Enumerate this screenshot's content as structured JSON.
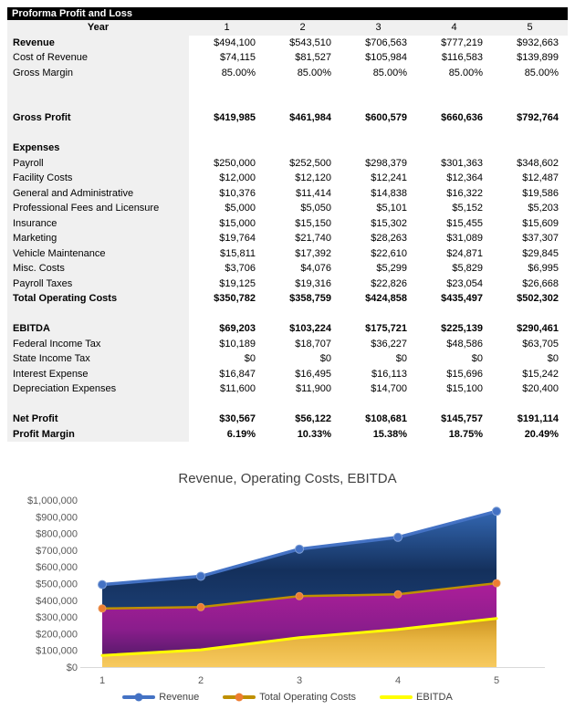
{
  "report": {
    "title": "Proforma Profit and Loss",
    "year_label": "Year",
    "years": [
      "1",
      "2",
      "3",
      "4",
      "5"
    ],
    "rows": [
      {
        "label": "Revenue",
        "bold_label": true,
        "values": [
          "$494,100",
          "$543,510",
          "$706,563",
          "$777,219",
          "$932,663"
        ]
      },
      {
        "label": "Cost of Revenue",
        "values": [
          "$74,115",
          "$81,527",
          "$105,984",
          "$116,583",
          "$139,899"
        ]
      },
      {
        "label": "Gross Margin",
        "values": [
          "85.00%",
          "85.00%",
          "85.00%",
          "85.00%",
          "85.00%"
        ]
      },
      {
        "type": "blank"
      },
      {
        "type": "blank"
      },
      {
        "label": "Gross Profit",
        "bold": true,
        "values": [
          "$419,985",
          "$461,984",
          "$600,579",
          "$660,636",
          "$792,764"
        ]
      },
      {
        "type": "blank"
      },
      {
        "label": "Expenses",
        "bold_label": true
      },
      {
        "label": "Payroll",
        "values": [
          "$250,000",
          "$252,500",
          "$298,379",
          "$301,363",
          "$348,602"
        ]
      },
      {
        "label": "Facility Costs",
        "values": [
          "$12,000",
          "$12,120",
          "$12,241",
          "$12,364",
          "$12,487"
        ]
      },
      {
        "label": "General and Administrative",
        "values": [
          "$10,376",
          "$11,414",
          "$14,838",
          "$16,322",
          "$19,586"
        ]
      },
      {
        "label": "Professional Fees and Licensure",
        "values": [
          "$5,000",
          "$5,050",
          "$5,101",
          "$5,152",
          "$5,203"
        ]
      },
      {
        "label": "Insurance",
        "values": [
          "$15,000",
          "$15,150",
          "$15,302",
          "$15,455",
          "$15,609"
        ]
      },
      {
        "label": "Marketing",
        "values": [
          "$19,764",
          "$21,740",
          "$28,263",
          "$31,089",
          "$37,307"
        ]
      },
      {
        "label": "Vehicle Maintenance",
        "values": [
          "$15,811",
          "$17,392",
          "$22,610",
          "$24,871",
          "$29,845"
        ]
      },
      {
        "label": "Misc. Costs",
        "values": [
          "$3,706",
          "$4,076",
          "$5,299",
          "$5,829",
          "$6,995"
        ]
      },
      {
        "label": "Payroll Taxes",
        "values": [
          "$19,125",
          "$19,316",
          "$22,826",
          "$23,054",
          "$26,668"
        ]
      },
      {
        "label": "Total Operating Costs",
        "bold": true,
        "values": [
          "$350,782",
          "$358,759",
          "$424,858",
          "$435,497",
          "$502,302"
        ]
      },
      {
        "type": "blank"
      },
      {
        "label": "EBITDA",
        "bold": true,
        "values": [
          "$69,203",
          "$103,224",
          "$175,721",
          "$225,139",
          "$290,461"
        ]
      },
      {
        "label": "Federal Income Tax",
        "values": [
          "$10,189",
          "$18,707",
          "$36,227",
          "$48,586",
          "$63,705"
        ]
      },
      {
        "label": "State Income Tax",
        "values": [
          "$0",
          "$0",
          "$0",
          "$0",
          "$0"
        ]
      },
      {
        "label": "Interest Expense",
        "values": [
          "$16,847",
          "$16,495",
          "$16,113",
          "$15,696",
          "$15,242"
        ]
      },
      {
        "label": "Depreciation Expenses",
        "values": [
          "$11,600",
          "$11,900",
          "$14,700",
          "$15,100",
          "$20,400"
        ]
      },
      {
        "type": "blank"
      },
      {
        "label": "Net Profit",
        "bold": true,
        "values": [
          "$30,567",
          "$56,122",
          "$108,681",
          "$145,757",
          "$191,114"
        ]
      },
      {
        "label": "Profit Margin",
        "bold": true,
        "values": [
          "6.19%",
          "10.33%",
          "15.38%",
          "18.75%",
          "20.49%"
        ]
      }
    ],
    "colors": {
      "title_bar_bg": "#000000",
      "title_bar_text": "#FFFFFF",
      "label_column_bg": "#F0F0F0",
      "body_text": "#000000"
    }
  },
  "chart_data": {
    "type": "area",
    "title": "Revenue, Operating Costs, EBITDA",
    "x": [
      1,
      2,
      3,
      4,
      5
    ],
    "series": [
      {
        "name": "Revenue",
        "values": [
          494100,
          543510,
          706563,
          777219,
          932663
        ],
        "line_color": "#4472C4",
        "marker": true,
        "marker_color": "#4472C4",
        "gradient": [
          "#3367B2",
          "#14305C",
          "#1C4077",
          "#2E5DA6"
        ],
        "gradient_stops": [
          0,
          0.38,
          0.72,
          1
        ]
      },
      {
        "name": "Total Operating Costs",
        "values": [
          350782,
          358759,
          424858,
          435497,
          502302
        ],
        "line_color": "#BF9000",
        "marker": true,
        "marker_color": "#ED7D31",
        "gradient": [
          "#AC1E99",
          "#8A1D8C",
          "#45195F"
        ],
        "gradient_stops": [
          0,
          0.55,
          1
        ]
      },
      {
        "name": "EBITDA",
        "values": [
          69203,
          103224,
          175721,
          225139,
          290461
        ],
        "line_color": "#FFFF00",
        "marker": false,
        "marker_color": null,
        "gradient": [
          "#CE9520",
          "#E8B542",
          "#F7CA5F"
        ],
        "gradient_stops": [
          0,
          0.45,
          1
        ]
      }
    ],
    "ylim": [
      0,
      1000000
    ],
    "y_tick_step": 100000,
    "y_tick_prefix": "$",
    "grid": false,
    "legend_position": "bottom",
    "axis_text_color": "#595959",
    "title_color": "#404040",
    "axis_line_color": "#D9D9D9"
  }
}
